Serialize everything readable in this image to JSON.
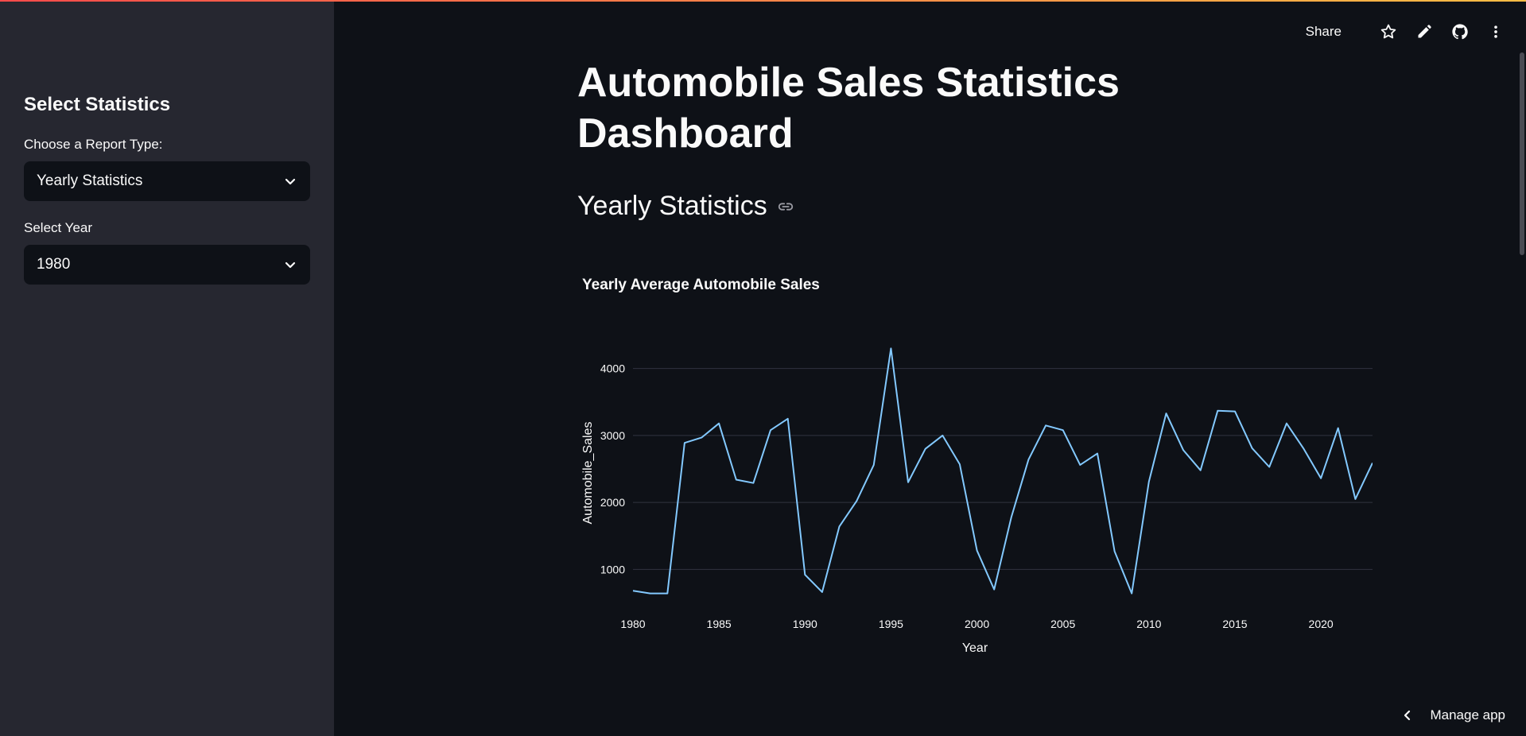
{
  "sidebar": {
    "title": "Select Statistics",
    "report_type": {
      "label": "Choose a Report Type:",
      "value": "Yearly Statistics"
    },
    "year": {
      "label": "Select Year",
      "value": "1980"
    }
  },
  "toolbar": {
    "share_label": "Share",
    "icons": [
      "star-icon",
      "pencil-icon",
      "github-icon",
      "more-vertical-icon"
    ]
  },
  "main": {
    "title": "Automobile Sales Statistics Dashboard",
    "section_title": "Yearly Statistics"
  },
  "footer": {
    "manage_label": "Manage app"
  },
  "colors": {
    "line": "#83c9ff",
    "grid": "#31333f",
    "bg": "#0e1117",
    "sidebar": "#262730"
  },
  "chart_data": {
    "type": "line",
    "title": "Yearly Average Automobile Sales",
    "xlabel": "Year",
    "ylabel": "Automobile_Sales",
    "xlim": [
      1980,
      2023
    ],
    "ylim": [
      600,
      4400
    ],
    "xticks": [
      1980,
      1985,
      1990,
      1995,
      2000,
      2005,
      2010,
      2015,
      2020
    ],
    "yticks": [
      1000,
      2000,
      3000,
      4000
    ],
    "x": [
      1980,
      1981,
      1982,
      1983,
      1984,
      1985,
      1986,
      1987,
      1988,
      1989,
      1990,
      1991,
      1992,
      1993,
      1994,
      1995,
      1996,
      1997,
      1998,
      1999,
      2000,
      2001,
      2002,
      2003,
      2004,
      2005,
      2006,
      2007,
      2008,
      2009,
      2010,
      2011,
      2012,
      2013,
      2014,
      2015,
      2016,
      2017,
      2018,
      2019,
      2020,
      2021,
      2022,
      2023
    ],
    "y": [
      680,
      640,
      640,
      2890,
      2970,
      3180,
      2340,
      2290,
      3080,
      3250,
      920,
      660,
      1640,
      2020,
      2560,
      4300,
      2300,
      2800,
      3000,
      2570,
      1280,
      700,
      1780,
      2640,
      3150,
      3080,
      2560,
      2730,
      1270,
      640,
      2310,
      3330,
      2780,
      2480,
      3370,
      3360,
      2810,
      2530,
      3180,
      2800,
      2360,
      3110,
      2050,
      2590
    ]
  }
}
